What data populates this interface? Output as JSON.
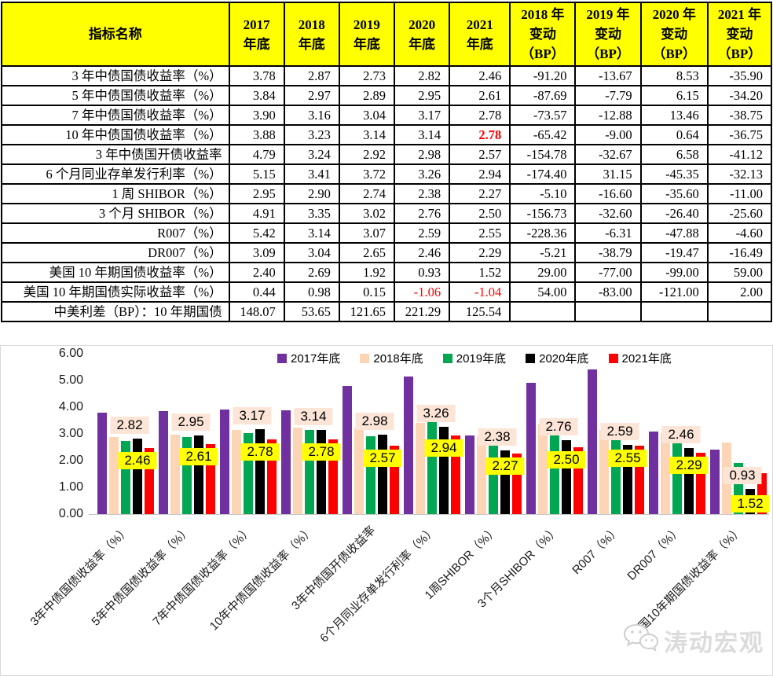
{
  "colors": {
    "header_bg": "#FFFF00",
    "table_border": "#000000",
    "red_text": "#FF0000",
    "axis_line": "#C6C6C6",
    "label_bg_2020": "#FCE4D6",
    "label_bg_2021": "#FFFF00",
    "watermark": "#DBDBDB"
  },
  "table": {
    "header_col1": "指标名称",
    "year_headers": [
      "2017\n年底",
      "2018\n年底",
      "2019\n年底",
      "2020\n年底",
      "2021\n年底"
    ],
    "change_headers": [
      "2018 年\n变动\n（BP）",
      "2019 年\n变动\n（BP）",
      "2020 年\n变动\n（BP）",
      "2021 年\n变动\n（BP）"
    ],
    "rows": [
      {
        "name": "3 年中债国债收益率（%）",
        "values": [
          "3.78",
          "2.87",
          "2.73",
          "2.82",
          "2.46"
        ],
        "changes": [
          "-91.20",
          "-13.67",
          "8.53",
          "-35.90"
        ]
      },
      {
        "name": "5 年中债国债收益率（%）",
        "values": [
          "3.84",
          "2.97",
          "2.89",
          "2.95",
          "2.61"
        ],
        "changes": [
          "-87.69",
          "-7.79",
          "6.15",
          "-34.20"
        ]
      },
      {
        "name": "7 年中债国债收益率（%）",
        "values": [
          "3.90",
          "3.16",
          "3.04",
          "3.17",
          "2.78"
        ],
        "changes": [
          "-73.57",
          "-12.88",
          "13.46",
          "-38.75"
        ]
      },
      {
        "name": "10 年中债国债收益率（%）",
        "values": [
          "3.88",
          "3.23",
          "3.14",
          "3.14",
          "2.78"
        ],
        "changes": [
          "-65.42",
          "-9.00",
          "0.64",
          "-36.75"
        ],
        "red_values": [
          4
        ],
        "red_bold": true
      },
      {
        "name": "3 年中债国开债收益率",
        "values": [
          "4.79",
          "3.24",
          "2.92",
          "2.98",
          "2.57"
        ],
        "changes": [
          "-154.78",
          "-32.67",
          "6.58",
          "-41.12"
        ]
      },
      {
        "name": "6 个月同业存单发行利率（%）",
        "values": [
          "5.15",
          "3.41",
          "3.72",
          "3.26",
          "2.94"
        ],
        "changes": [
          "-174.40",
          "31.15",
          "-45.35",
          "-32.13"
        ]
      },
      {
        "name": "1 周 SHIBOR（%）",
        "values": [
          "2.95",
          "2.90",
          "2.74",
          "2.38",
          "2.27"
        ],
        "changes": [
          "-5.10",
          "-16.60",
          "-35.60",
          "-11.00"
        ]
      },
      {
        "name": "3 个月 SHIBOR（%）",
        "values": [
          "4.91",
          "3.35",
          "3.02",
          "2.76",
          "2.50"
        ],
        "changes": [
          "-156.73",
          "-32.60",
          "-26.40",
          "-25.60"
        ]
      },
      {
        "name": "R007（%）",
        "values": [
          "5.42",
          "3.14",
          "3.07",
          "2.59",
          "2.55"
        ],
        "changes": [
          "-228.36",
          "-6.31",
          "-47.88",
          "-4.60"
        ]
      },
      {
        "name": "DR007（%）",
        "values": [
          "3.09",
          "3.04",
          "2.65",
          "2.46",
          "2.29"
        ],
        "changes": [
          "-5.21",
          "-38.79",
          "-19.47",
          "-16.49"
        ]
      },
      {
        "name": "美国 10 年期国债收益率（%）",
        "values": [
          "2.40",
          "2.69",
          "1.92",
          "0.93",
          "1.52"
        ],
        "changes": [
          "29.00",
          "-77.00",
          "-99.00",
          "59.00"
        ]
      },
      {
        "name": "美国 10 年期国债实际收益率（%）",
        "values": [
          "0.44",
          "0.98",
          "0.15",
          "-1.06",
          "-1.04"
        ],
        "changes": [
          "54.00",
          "-83.00",
          "-121.00",
          "2.00"
        ],
        "red_values": [
          3,
          4
        ]
      },
      {
        "name": "中美利差（BP）：10 年期国债",
        "values": [
          "148.07",
          "53.65",
          "121.65",
          "221.29",
          "125.54"
        ],
        "changes": [
          "",
          "",
          "",
          ""
        ]
      }
    ]
  },
  "chart_data": {
    "type": "bar",
    "title": "",
    "xlabel": "",
    "ylabel": "",
    "ylim": [
      0,
      6
    ],
    "ytick_step": 1,
    "ytick_labels": [
      "0.00",
      "1.00",
      "2.00",
      "3.00",
      "4.00",
      "5.00",
      "6.00"
    ],
    "grid": false,
    "legend_position": "top",
    "categories": [
      "3年中债国债收益率（%）",
      "5年中债国债收益率（%）",
      "7年中债国债收益率（%）",
      "10年中债国债收益率（%）",
      "3年中债国开债收益率",
      "6个月同业存单发行利率（%）",
      "1周SHIBOR（%）",
      "3个月SHIBOR（%）",
      "R007（%）",
      "DR007（%）",
      "美国10年期国债收益率（%）"
    ],
    "series": [
      {
        "name": "2017年底",
        "color": "#7030A0",
        "values": [
          3.78,
          3.84,
          3.9,
          3.88,
          4.79,
          5.15,
          2.95,
          4.91,
          5.42,
          3.09,
          2.4
        ]
      },
      {
        "name": "2018年底",
        "color": "#FBD5B5",
        "values": [
          2.87,
          2.97,
          3.16,
          3.23,
          3.24,
          3.41,
          2.9,
          3.35,
          3.14,
          3.04,
          2.69
        ]
      },
      {
        "name": "2019年底",
        "color": "#00A651",
        "values": [
          2.73,
          2.89,
          3.04,
          3.14,
          2.92,
          3.72,
          2.74,
          3.02,
          3.07,
          2.65,
          1.92
        ]
      },
      {
        "name": "2020年底",
        "color": "#000000",
        "values": [
          2.82,
          2.95,
          3.17,
          3.14,
          2.98,
          3.26,
          2.38,
          2.76,
          2.59,
          2.46,
          0.93
        ]
      },
      {
        "name": "2021年底",
        "color": "#FF0000",
        "values": [
          2.46,
          2.61,
          2.78,
          2.78,
          2.57,
          2.94,
          2.27,
          2.5,
          2.55,
          2.29,
          1.52
        ]
      }
    ],
    "data_labels": {
      "labeled_series": [
        "2020年底",
        "2021年底"
      ],
      "label_2020_bg": "#FCE4D6",
      "label_2021_bg": "#FFFF00"
    }
  },
  "watermark": {
    "text": "涛动宏观",
    "icon": "wechat-icon"
  }
}
